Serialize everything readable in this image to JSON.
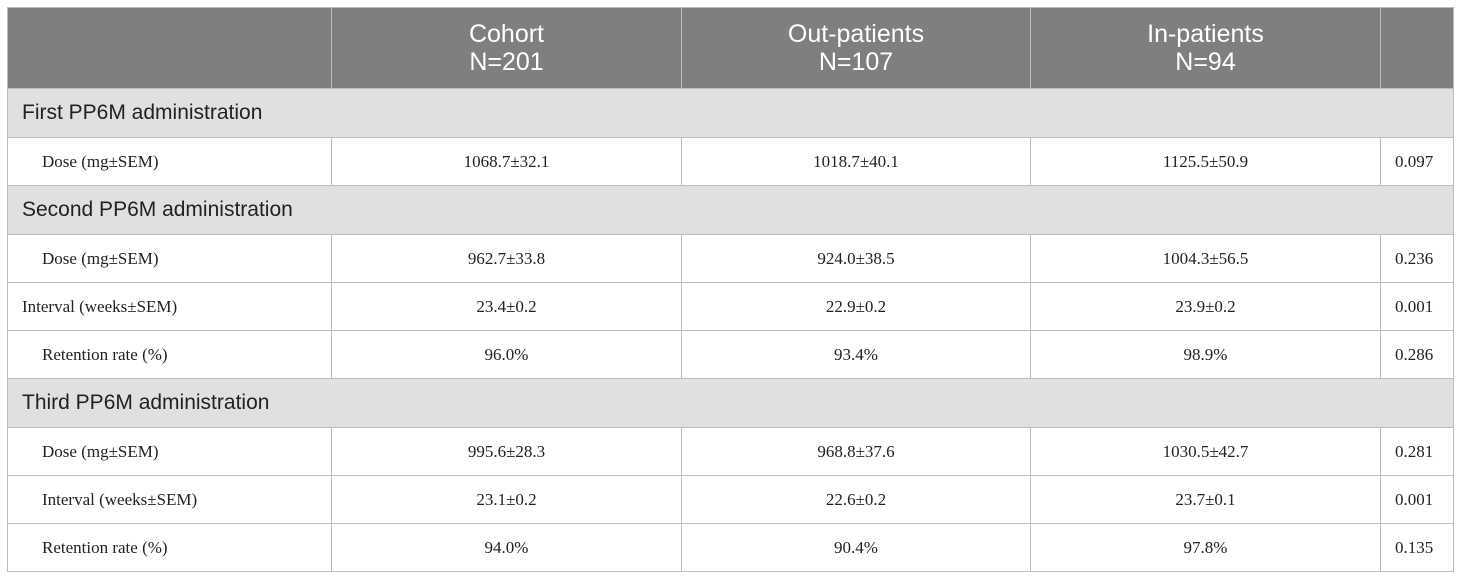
{
  "table": {
    "headers": [
      {
        "line1": "",
        "line2": ""
      },
      {
        "line1": "Cohort",
        "line2": "N=201"
      },
      {
        "line1": "Out-patients",
        "line2": "N=107"
      },
      {
        "line1": "In-patients",
        "line2": "N=94"
      },
      {
        "line1": "",
        "line2": ""
      }
    ],
    "sections": [
      {
        "title": "First PP6M administration",
        "rows": [
          {
            "label": "Dose (mg±SEM)",
            "cohort": "1068.7±32.1",
            "out": "1018.7±40.1",
            "in": "1125.5±50.9",
            "p": "0.097"
          }
        ]
      },
      {
        "title": "Second PP6M administration",
        "rows": [
          {
            "label": "Dose (mg±SEM)",
            "cohort": "962.7±33.8",
            "out": "924.0±38.5",
            "in": "1004.3±56.5",
            "p": "0.236"
          },
          {
            "label": "Interval (weeks±SEM)",
            "cohort": "23.4±0.2",
            "out": "22.9±0.2",
            "in": "23.9±0.2",
            "p": "0.001"
          },
          {
            "label": "Retention rate (%)",
            "cohort": "96.0%",
            "out": "93.4%",
            "in": "98.9%",
            "p": "0.286"
          }
        ]
      },
      {
        "title": "Third PP6M administration",
        "rows": [
          {
            "label": "Dose (mg±SEM)",
            "cohort": "995.6±28.3",
            "out": "968.8±37.6",
            "in": "1030.5±42.7",
            "p": "0.281"
          },
          {
            "label": "Interval (weeks±SEM)",
            "cohort": "23.1±0.2",
            "out": "22.6±0.2",
            "in": "23.7±0.1",
            "p": "0.001"
          },
          {
            "label": "Retention rate (%)",
            "cohort": "94.0%",
            "out": "90.4%",
            "in": "97.8%",
            "p": "0.135"
          }
        ]
      }
    ]
  }
}
